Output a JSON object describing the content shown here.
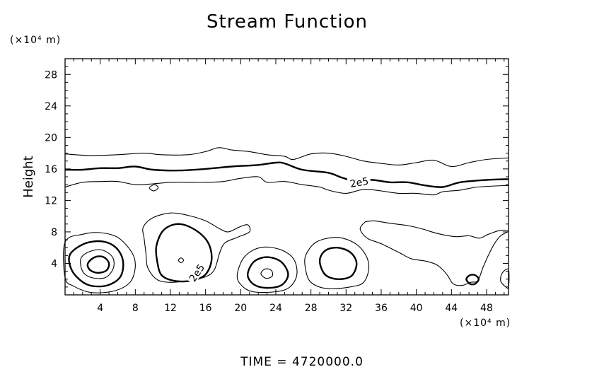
{
  "chart_data": {
    "type": "contour",
    "title": "Stream Function",
    "ylabel": "Height",
    "y_unit": "(×10⁴ m)",
    "x_unit": "(×10⁴ m)",
    "footer": "TIME  =  4720000.0",
    "xlim": [
      0,
      50.5
    ],
    "ylim": [
      0,
      30
    ],
    "x_major_ticks": [
      4,
      8,
      12,
      16,
      20,
      24,
      28,
      32,
      36,
      40,
      44,
      48
    ],
    "y_major_ticks": [
      4,
      8,
      12,
      16,
      20,
      24,
      28
    ],
    "contour_labels": [
      {
        "text": "2e5",
        "x": 33.5,
        "y": 14.3,
        "rotation": -10
      },
      {
        "text": "2e5",
        "x": 15.0,
        "y": 2.8,
        "rotation": -55
      }
    ],
    "contours": [
      {
        "name": "upper-outer",
        "bold": false,
        "points": [
          [
            0,
            17.9
          ],
          [
            3,
            17.7
          ],
          [
            6,
            17.8
          ],
          [
            9,
            18.0
          ],
          [
            11,
            17.8
          ],
          [
            14,
            17.8
          ],
          [
            16,
            18.2
          ],
          [
            17.5,
            18.7
          ],
          [
            19,
            18.4
          ],
          [
            21,
            18.2
          ],
          [
            23,
            17.8
          ],
          [
            25,
            17.6
          ],
          [
            26,
            17.2
          ],
          [
            28,
            17.9
          ],
          [
            30,
            18.0
          ],
          [
            32,
            17.6
          ],
          [
            34,
            17.0
          ],
          [
            36,
            16.7
          ],
          [
            38,
            16.5
          ],
          [
            40,
            16.8
          ],
          [
            42,
            17.1
          ],
          [
            44,
            16.3
          ],
          [
            46,
            16.8
          ],
          [
            48,
            17.2
          ],
          [
            50.5,
            17.4
          ]
        ]
      },
      {
        "name": "upper-bold-2e5",
        "bold": true,
        "points": [
          [
            0,
            15.9
          ],
          [
            2,
            15.9
          ],
          [
            4,
            16.1
          ],
          [
            6,
            16.1
          ],
          [
            8,
            16.3
          ],
          [
            10,
            15.9
          ],
          [
            13,
            15.8
          ],
          [
            16,
            16.0
          ],
          [
            19,
            16.3
          ],
          [
            22,
            16.5
          ],
          [
            24,
            16.8
          ],
          [
            25,
            16.7
          ],
          [
            27,
            15.9
          ],
          [
            30,
            15.5
          ],
          [
            31.5,
            14.9
          ],
          [
            33,
            14.5
          ],
          [
            35,
            14.6
          ],
          [
            37,
            14.3
          ],
          [
            39,
            14.3
          ],
          [
            41,
            13.9
          ],
          [
            43,
            13.7
          ],
          [
            45,
            14.3
          ],
          [
            48,
            14.6
          ],
          [
            50.5,
            14.7
          ]
        ]
      },
      {
        "name": "upper-inner",
        "bold": false,
        "points": [
          [
            0,
            13.7
          ],
          [
            2,
            14.3
          ],
          [
            4,
            14.4
          ],
          [
            6,
            14.4
          ],
          [
            8,
            14.0
          ],
          [
            10,
            14.1
          ],
          [
            12,
            14.3
          ],
          [
            14,
            14.3
          ],
          [
            16,
            14.3
          ],
          [
            18,
            14.4
          ],
          [
            20,
            14.8
          ],
          [
            22,
            15.0
          ],
          [
            23,
            14.3
          ],
          [
            25,
            14.4
          ],
          [
            27,
            14.0
          ],
          [
            29,
            13.7
          ],
          [
            30,
            13.3
          ],
          [
            32,
            12.9
          ],
          [
            34,
            13.4
          ],
          [
            36,
            13.2
          ],
          [
            38,
            12.9
          ],
          [
            40,
            12.9
          ],
          [
            42,
            12.7
          ],
          [
            43,
            13.1
          ],
          [
            45,
            13.3
          ],
          [
            47,
            13.7
          ],
          [
            50.5,
            13.9
          ]
        ]
      },
      {
        "name": "small-blob-upper",
        "bold": false,
        "closed": true,
        "points": [
          [
            9.6,
            13.6
          ],
          [
            10.2,
            14.0
          ],
          [
            10.6,
            13.6
          ],
          [
            10.1,
            13.2
          ]
        ]
      },
      {
        "name": "lower-left-outer",
        "bold": false,
        "closed": true,
        "points": [
          [
            0,
            6.7
          ],
          [
            2,
            7.7
          ],
          [
            4,
            7.9
          ],
          [
            6,
            7.3
          ],
          [
            7.6,
            5.4
          ],
          [
            8.0,
            3.6
          ],
          [
            7.4,
            1.6
          ],
          [
            5.6,
            0.5
          ],
          [
            3.0,
            0.3
          ],
          [
            1.0,
            1.1
          ],
          [
            0,
            2.2
          ]
        ]
      },
      {
        "name": "lower-left-mid",
        "bold": true,
        "closed": true,
        "points": [
          [
            0.6,
            5.2
          ],
          [
            2.2,
            6.5
          ],
          [
            4.2,
            6.8
          ],
          [
            5.8,
            6.0
          ],
          [
            6.6,
            4.3
          ],
          [
            6.3,
            2.3
          ],
          [
            4.8,
            1.2
          ],
          [
            2.8,
            1.2
          ],
          [
            1.4,
            2.2
          ],
          [
            0.6,
            3.6
          ]
        ]
      },
      {
        "name": "lower-left-inner",
        "bold": false,
        "closed": true,
        "points": [
          [
            1.8,
            4.6
          ],
          [
            2.8,
            5.5
          ],
          [
            4.2,
            5.7
          ],
          [
            5.4,
            4.8
          ],
          [
            5.5,
            3.4
          ],
          [
            4.6,
            2.2
          ],
          [
            3.0,
            2.2
          ],
          [
            2.0,
            3.0
          ]
        ]
      },
      {
        "name": "lower-left-core",
        "bold": true,
        "closed": true,
        "points": [
          [
            2.6,
            4.0
          ],
          [
            3.4,
            4.8
          ],
          [
            4.4,
            4.8
          ],
          [
            5.0,
            4.0
          ],
          [
            4.7,
            3.1
          ],
          [
            3.7,
            2.8
          ],
          [
            2.8,
            3.2
          ]
        ]
      },
      {
        "name": "mid-envelope",
        "bold": false,
        "closed": true,
        "points": [
          [
            8.9,
            8.6
          ],
          [
            10.0,
            9.8
          ],
          [
            12.0,
            10.4
          ],
          [
            14.0,
            10.1
          ],
          [
            16.0,
            9.4
          ],
          [
            17.6,
            8.4
          ],
          [
            18.6,
            8.0
          ],
          [
            19.8,
            8.6
          ],
          [
            20.8,
            8.9
          ],
          [
            21.0,
            8.0
          ],
          [
            19.6,
            7.3
          ],
          [
            18.2,
            6.6
          ],
          [
            17.6,
            5.3
          ],
          [
            17.0,
            3.2
          ],
          [
            16.0,
            2.3
          ],
          [
            14.0,
            1.8
          ],
          [
            11.8,
            1.6
          ],
          [
            10.4,
            2.0
          ],
          [
            9.4,
            3.5
          ],
          [
            9.2,
            5.4
          ],
          [
            9.0,
            7.2
          ]
        ]
      },
      {
        "name": "mid-left-bold-2e5",
        "bold": true,
        "closed": true,
        "points": [
          [
            10.4,
            6.2
          ],
          [
            11.2,
            8.2
          ],
          [
            12.8,
            9.0
          ],
          [
            14.6,
            8.4
          ],
          [
            16.2,
            6.8
          ],
          [
            16.7,
            4.6
          ],
          [
            16.0,
            2.6
          ],
          [
            14.4,
            1.8
          ],
          [
            12.4,
            1.8
          ],
          [
            11.0,
            2.5
          ],
          [
            10.5,
            4.2
          ]
        ]
      },
      {
        "name": "mid-left-core",
        "bold": false,
        "closed": true,
        "points": [
          [
            12.9,
            4.4
          ],
          [
            13.2,
            4.7
          ],
          [
            13.5,
            4.4
          ],
          [
            13.2,
            4.1
          ]
        ]
      },
      {
        "name": "mid-right-outer",
        "bold": false,
        "closed": true,
        "points": [
          [
            19.6,
            2.5
          ],
          [
            20.4,
            4.8
          ],
          [
            22.2,
            6.0
          ],
          [
            24.4,
            5.8
          ],
          [
            26.0,
            4.6
          ],
          [
            26.4,
            2.6
          ],
          [
            25.6,
            1.0
          ],
          [
            24.0,
            0.4
          ],
          [
            21.4,
            0.4
          ],
          [
            20.1,
            1.2
          ]
        ]
      },
      {
        "name": "mid-right-mid",
        "bold": true,
        "closed": true,
        "points": [
          [
            20.8,
            2.6
          ],
          [
            21.5,
            4.2
          ],
          [
            23.0,
            4.8
          ],
          [
            24.6,
            4.2
          ],
          [
            25.4,
            2.6
          ],
          [
            24.6,
            1.2
          ],
          [
            22.8,
            0.9
          ],
          [
            21.4,
            1.4
          ]
        ]
      },
      {
        "name": "mid-right-inner",
        "bold": false,
        "closed": true,
        "points": [
          [
            22.3,
            2.7
          ],
          [
            22.8,
            3.3
          ],
          [
            23.5,
            3.1
          ],
          [
            23.6,
            2.4
          ],
          [
            22.9,
            2.1
          ]
        ]
      },
      {
        "name": "right-outer",
        "bold": false,
        "closed": true,
        "points": [
          [
            27.4,
            5.0
          ],
          [
            28.6,
            6.7
          ],
          [
            30.8,
            7.3
          ],
          [
            32.6,
            6.8
          ],
          [
            34.0,
            5.5
          ],
          [
            34.6,
            3.6
          ],
          [
            34.0,
            1.6
          ],
          [
            32.4,
            1.0
          ],
          [
            29.8,
            0.8
          ],
          [
            28.0,
            1.6
          ],
          [
            27.4,
            3.2
          ]
        ]
      },
      {
        "name": "right-inner",
        "bold": true,
        "closed": true,
        "points": [
          [
            29.0,
            4.3
          ],
          [
            29.6,
            5.6
          ],
          [
            31.0,
            6.0
          ],
          [
            32.5,
            5.4
          ],
          [
            33.2,
            4.0
          ],
          [
            32.6,
            2.4
          ],
          [
            31.0,
            2.0
          ],
          [
            29.6,
            2.6
          ]
        ]
      },
      {
        "name": "far-right-envelope",
        "bold": false,
        "points": [
          [
            34.2,
            9.3
          ],
          [
            35.2,
            9.4
          ],
          [
            37.0,
            9.1
          ],
          [
            39.0,
            8.8
          ],
          [
            40.6,
            8.4
          ],
          [
            42.4,
            7.8
          ],
          [
            44.4,
            7.4
          ],
          [
            46.0,
            7.5
          ],
          [
            47.2,
            7.2
          ],
          [
            48.2,
            7.7
          ],
          [
            49.6,
            8.2
          ],
          [
            50.5,
            8.1
          ],
          [
            49.6,
            7.5
          ],
          [
            48.9,
            6.5
          ],
          [
            48.2,
            5.0
          ],
          [
            47.6,
            3.5
          ],
          [
            47.0,
            1.8
          ],
          [
            46.2,
            1.6
          ],
          [
            45.2,
            1.2
          ],
          [
            44.2,
            1.4
          ],
          [
            43.6,
            2.4
          ],
          [
            43.0,
            3.2
          ],
          [
            42.2,
            3.9
          ],
          [
            41.0,
            4.3
          ],
          [
            39.4,
            4.6
          ],
          [
            38.0,
            5.4
          ],
          [
            36.0,
            6.5
          ],
          [
            34.4,
            7.2
          ],
          [
            33.6,
            8.4
          ],
          [
            34.2,
            9.3
          ]
        ]
      },
      {
        "name": "far-right-small",
        "bold": true,
        "closed": true,
        "points": [
          [
            45.7,
            2.0
          ],
          [
            46.1,
            2.5
          ],
          [
            46.7,
            2.5
          ],
          [
            47.1,
            2.0
          ],
          [
            46.7,
            1.4
          ],
          [
            46.1,
            1.4
          ]
        ]
      },
      {
        "name": "edge-right-small",
        "bold": false,
        "closed": true,
        "points": [
          [
            50.5,
            3.2
          ],
          [
            49.8,
            2.8
          ],
          [
            49.6,
            1.8
          ],
          [
            50.1,
            1.1
          ],
          [
            50.5,
            1.0
          ]
        ]
      }
    ]
  }
}
